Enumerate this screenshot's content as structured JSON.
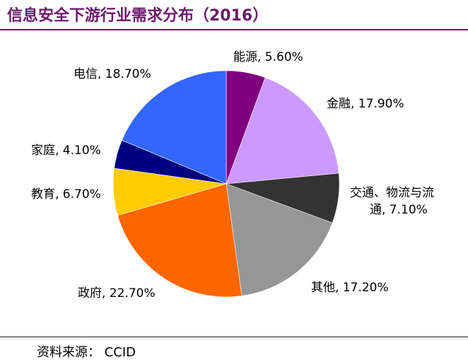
{
  "title": "信息安全下游行业需求分布（2016）",
  "source": "资料来源：  CCID",
  "chart_data": {
    "type": "pie",
    "title": "信息安全下游行业需求分布（2016）",
    "slices": [
      {
        "name": "能源",
        "value": 5.6,
        "label": "能源, 5.60%",
        "color": "#7f007f"
      },
      {
        "name": "金融",
        "value": 17.9,
        "label": "金融, 17.90%",
        "color": "#cc99ff"
      },
      {
        "name": "交通、物流与流通",
        "value": 7.1,
        "label_lines": [
          "交通、物流与流",
          "通, 7.10%"
        ],
        "color": "#333333"
      },
      {
        "name": "其他",
        "value": 17.2,
        "label": "其他, 17.20%",
        "color": "#969696"
      },
      {
        "name": "政府",
        "value": 22.7,
        "label": "政府, 22.70%",
        "color": "#ff6600"
      },
      {
        "name": "教育",
        "value": 6.7,
        "label": "教育, 6.70%",
        "color": "#ffcc00"
      },
      {
        "name": "家庭",
        "value": 4.1,
        "label": "家庭, 4.10%",
        "color": "#000080"
      },
      {
        "name": "电信",
        "value": 18.7,
        "label": "电信, 18.70%",
        "color": "#3366ff"
      }
    ],
    "start": "12 o'clock",
    "direction": "clockwise",
    "legend": "none"
  }
}
